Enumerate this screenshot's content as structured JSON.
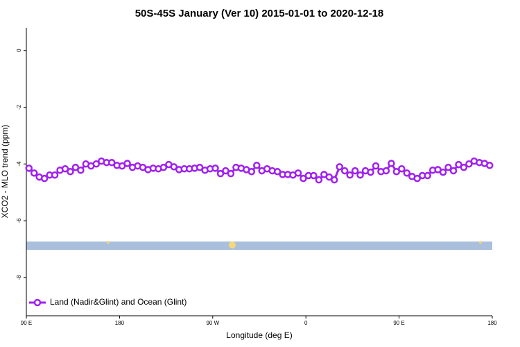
{
  "chart_data": {
    "type": "line",
    "title": "50S-45S January (Ver 10)   2015-01-01 to 2020-12-18",
    "xlabel": "Longitude (deg E)",
    "ylabel": "XCO2 - MLO trend (ppm)",
    "xlim": [
      90,
      540
    ],
    "xticks": [
      {
        "value": 90,
        "label": "90 E"
      },
      {
        "value": 180,
        "label": "180"
      },
      {
        "value": 270,
        "label": "90 W"
      },
      {
        "value": 360,
        "label": "0"
      },
      {
        "value": 450,
        "label": "90 E"
      },
      {
        "value": 540,
        "label": "180"
      }
    ],
    "ylim": [
      -9.35,
      0.8
    ],
    "yticks": [
      0,
      -2,
      -4,
      -6,
      -8
    ],
    "legend": "bottom-left",
    "x": [
      92.5,
      97.5,
      102.5,
      107.5,
      112.5,
      117.5,
      122.5,
      127.5,
      132.5,
      137.5,
      142.5,
      147.5,
      152.5,
      157.5,
      162.5,
      167.5,
      172.5,
      177.5,
      182.5,
      187.5,
      192.5,
      197.5,
      202.5,
      207.5,
      212.5,
      217.5,
      222.5,
      227.5,
      232.5,
      237.5,
      242.5,
      247.5,
      252.5,
      257.5,
      262.5,
      267.5,
      272.5,
      277.5,
      282.5,
      287.5,
      292.5,
      297.5,
      302.5,
      307.5,
      312.5,
      317.5,
      322.5,
      327.5,
      332.5,
      337.5,
      342.5,
      347.5,
      352.5,
      357.5,
      362.5,
      367.5,
      372.5,
      377.5,
      382.5,
      387.5,
      392.5,
      397.5,
      402.5,
      407.5,
      412.5,
      417.5,
      422.5,
      427.5,
      432.5,
      437.5,
      442.5,
      447.5,
      452.5,
      457.5,
      462.5,
      467.5,
      472.5,
      477.5,
      482.5,
      487.5,
      492.5,
      497.5,
      502.5,
      507.5,
      512.5,
      517.5,
      522.5,
      527.5,
      532.5,
      537.5
    ],
    "series": [
      {
        "name": "Land (Nadir&Glint) and Ocean (Glint)",
        "color": "#a020f0",
        "values": [
          -4.15,
          -4.32,
          -4.46,
          -4.51,
          -4.39,
          -4.39,
          -4.22,
          -4.17,
          -4.27,
          -4.12,
          -4.22,
          -4.0,
          -4.07,
          -4.0,
          -3.9,
          -3.95,
          -3.95,
          -4.05,
          -4.07,
          -3.98,
          -4.12,
          -4.07,
          -4.12,
          -4.2,
          -4.15,
          -4.17,
          -4.12,
          -4.02,
          -4.1,
          -4.2,
          -4.17,
          -4.17,
          -4.15,
          -4.12,
          -4.22,
          -4.17,
          -4.15,
          -4.34,
          -4.24,
          -4.34,
          -4.12,
          -4.15,
          -4.2,
          -4.27,
          -4.05,
          -4.24,
          -4.17,
          -4.24,
          -4.27,
          -4.37,
          -4.37,
          -4.39,
          -4.32,
          -4.51,
          -4.41,
          -4.41,
          -4.56,
          -4.37,
          -4.46,
          -4.56,
          -4.1,
          -4.24,
          -4.39,
          -4.24,
          -4.39,
          -4.24,
          -4.29,
          -4.07,
          -4.27,
          -4.24,
          -3.98,
          -4.27,
          -4.17,
          -4.32,
          -4.44,
          -4.51,
          -4.41,
          -4.41,
          -4.22,
          -4.2,
          -4.29,
          -4.12,
          -4.24,
          -4.02,
          -4.12,
          -4.0,
          -3.9,
          -3.95,
          -3.98,
          -4.05
        ]
      }
    ]
  }
}
